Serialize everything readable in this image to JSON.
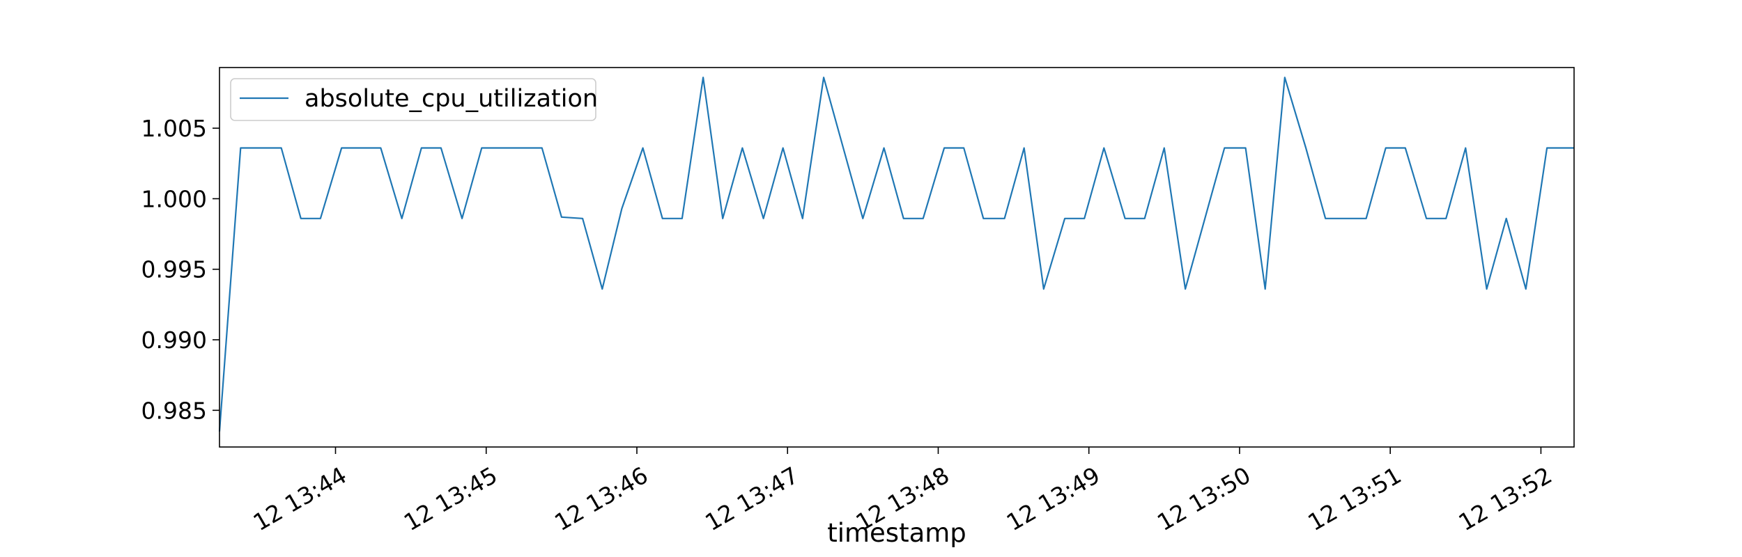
{
  "chart_data": {
    "type": "line",
    "title": "",
    "xlabel": "timestamp",
    "ylabel": "",
    "x_tick_labels": [
      "12 13:44",
      "12 13:45",
      "12 13:46",
      "12 13:47",
      "12 13:48",
      "12 13:49",
      "12 13:50",
      "12 13:51",
      "12 13:52"
    ],
    "y_tick_labels": [
      "0.985",
      "0.990",
      "0.995",
      "1.000",
      "1.005"
    ],
    "x_ticks_minutes": [
      44,
      45,
      46,
      47,
      48,
      49,
      50,
      51,
      52
    ],
    "y_ticks": [
      0.985,
      0.99,
      0.995,
      1.0,
      1.005
    ],
    "xlim_minutes": [
      43.23,
      52.22
    ],
    "ylim": [
      0.9824,
      1.0093
    ],
    "grid": false,
    "legend_position": "upper-left",
    "line_color": "#1f77b4",
    "series": [
      {
        "name": "absolute_cpu_utilization",
        "x_minutes": [
          43.23,
          43.37,
          43.5,
          43.64,
          43.77,
          43.9,
          44.04,
          44.17,
          44.3,
          44.44,
          44.57,
          44.7,
          44.84,
          44.97,
          45.1,
          45.24,
          45.37,
          45.5,
          45.64,
          45.77,
          45.9,
          46.04,
          46.17,
          46.3,
          46.44,
          46.57,
          46.7,
          46.84,
          46.97,
          47.1,
          47.24,
          47.37,
          47.5,
          47.64,
          47.77,
          47.9,
          48.04,
          48.17,
          48.3,
          48.44,
          48.57,
          48.7,
          48.84,
          48.97,
          49.1,
          49.24,
          49.37,
          49.5,
          49.64,
          49.77,
          49.9,
          50.04,
          50.17,
          50.3,
          50.44,
          50.57,
          50.7,
          50.84,
          50.97,
          51.1,
          51.24,
          51.37,
          51.5,
          51.64,
          51.77,
          51.9,
          52.04,
          52.17,
          52.22
        ],
        "values": [
          0.9835,
          1.0036,
          1.0036,
          1.0036,
          0.9986,
          0.9986,
          1.0036,
          1.0036,
          1.0036,
          0.9986,
          1.0036,
          1.0036,
          0.9986,
          1.0036,
          1.0036,
          1.0036,
          1.0036,
          0.9987,
          0.9986,
          0.9936,
          0.9993,
          1.0036,
          0.9986,
          0.9986,
          1.0086,
          0.9986,
          1.0036,
          0.9986,
          1.0036,
          0.9986,
          1.0086,
          1.0036,
          0.9986,
          1.0036,
          0.9986,
          0.9986,
          1.0036,
          1.0036,
          0.9986,
          0.9986,
          1.0036,
          0.9936,
          0.9986,
          0.9986,
          1.0036,
          0.9986,
          0.9986,
          1.0036,
          0.9936,
          0.9986,
          1.0036,
          1.0036,
          0.9936,
          1.0086,
          1.0036,
          0.9986,
          0.9986,
          0.9986,
          1.0036,
          1.0036,
          0.9986,
          0.9986,
          1.0036,
          0.9936,
          0.9986,
          0.9936,
          1.0036,
          1.0036,
          1.0036
        ]
      }
    ]
  }
}
